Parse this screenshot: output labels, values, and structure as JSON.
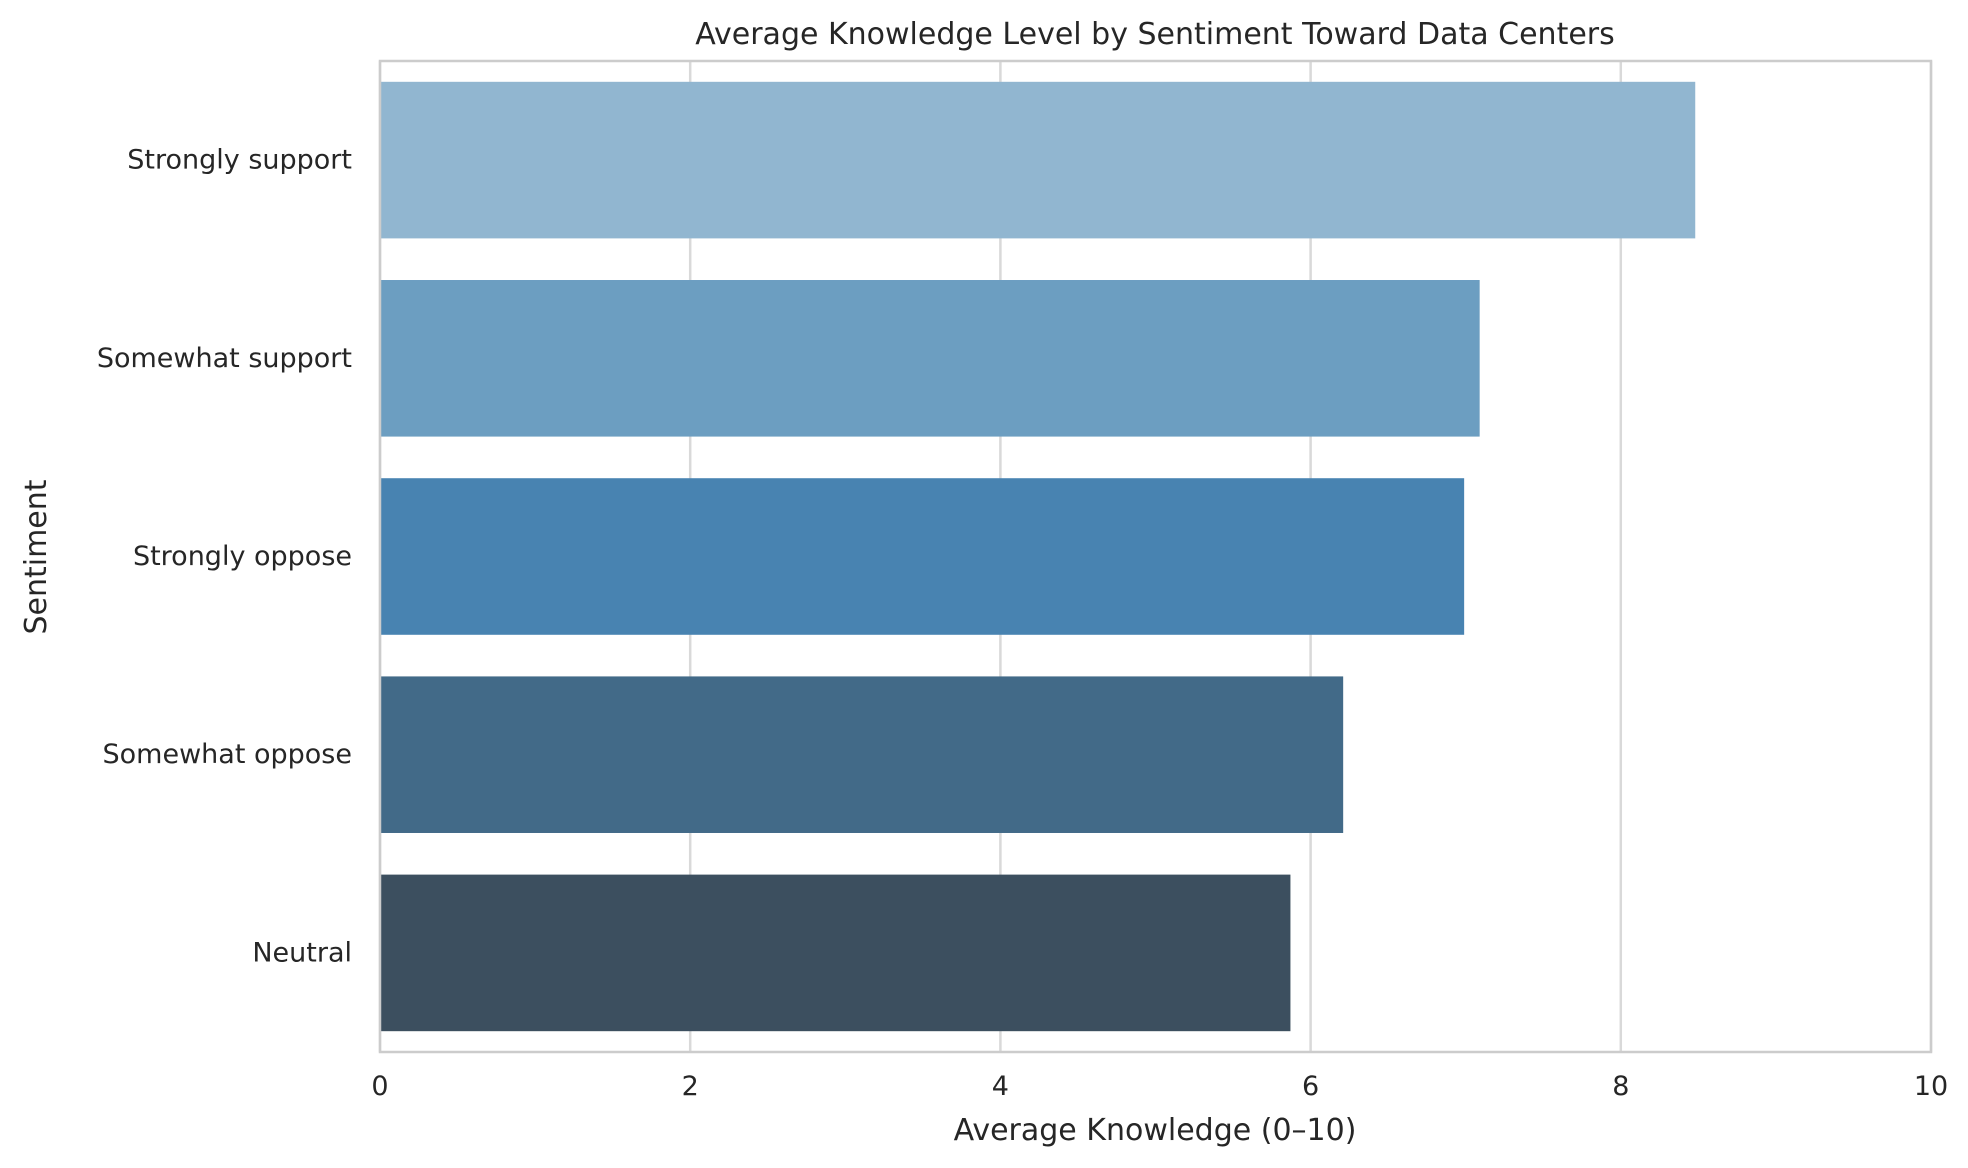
{
  "chart_data": {
    "type": "bar",
    "orientation": "horizontal",
    "title": "Average Knowledge Level by Sentiment Toward Data Centers",
    "xlabel": "Average Knowledge (0–10)",
    "ylabel": "Sentiment",
    "xlim": [
      0,
      10
    ],
    "xticks": [
      "0",
      "2",
      "4",
      "6",
      "8",
      "10"
    ],
    "grid": "vertical",
    "categories": [
      "Strongly support",
      "Somewhat support",
      "Strongly oppose",
      "Somewhat oppose",
      "Neutral"
    ],
    "values": [
      8.48,
      7.09,
      6.99,
      6.21,
      5.87
    ],
    "colors": [
      "#91b6d0",
      "#6c9ec1",
      "#4883b1",
      "#426a88",
      "#3c4f5f"
    ]
  }
}
